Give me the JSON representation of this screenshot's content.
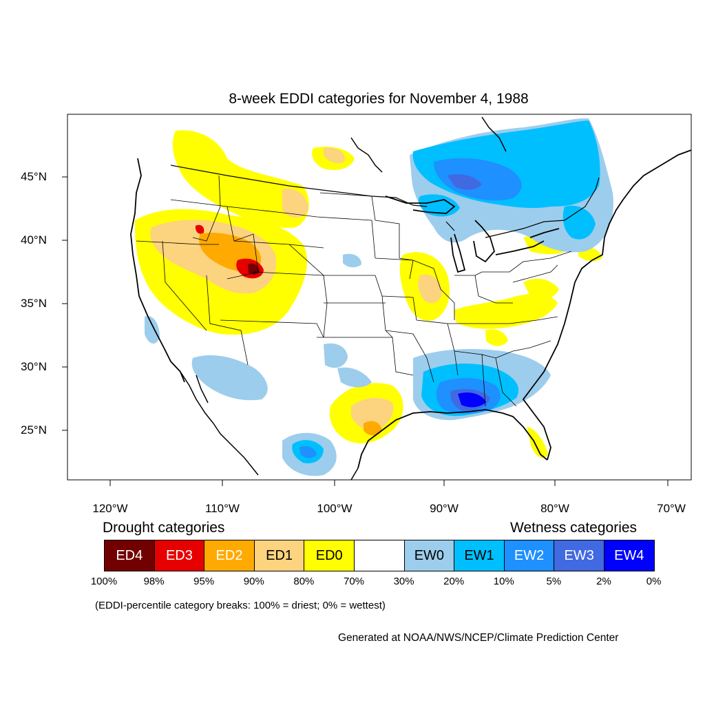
{
  "map": {
    "title": "8-week EDDI categories for November 4, 1988",
    "lat_labels": [
      "45°N",
      "40°N",
      "35°N",
      "30°N",
      "25°N"
    ],
    "lon_labels": [
      "120°W",
      "110°W",
      "100°W",
      "90°W",
      "80°W",
      "70°W"
    ]
  },
  "legend": {
    "drought_heading": "Drought categories",
    "wetness_heading": "Wetness categories",
    "categories": [
      {
        "label": "ED4",
        "color": "#730000",
        "text_color": "#ffffff"
      },
      {
        "label": "ED3",
        "color": "#e60000",
        "text_color": "#ffffff"
      },
      {
        "label": "ED2",
        "color": "#ffaa00",
        "text_color": "#ffffff"
      },
      {
        "label": "ED1",
        "color": "#fcd37f",
        "text_color": "#000000"
      },
      {
        "label": "ED0",
        "color": "#ffff00",
        "text_color": "#000000"
      },
      {
        "label": "",
        "color": "#ffffff",
        "text_color": "#000000"
      },
      {
        "label": "EW0",
        "color": "#9dcdec",
        "text_color": "#000000"
      },
      {
        "label": "EW1",
        "color": "#00bfff",
        "text_color": "#000000"
      },
      {
        "label": "EW2",
        "color": "#1e90ff",
        "text_color": "#ffffff"
      },
      {
        "label": "EW3",
        "color": "#4169e1",
        "text_color": "#ffffff"
      },
      {
        "label": "EW4",
        "color": "#0000ff",
        "text_color": "#ffffff"
      }
    ],
    "breaks": [
      "100%",
      "98%",
      "95%",
      "90%",
      "80%",
      "70%",
      "30%",
      "20%",
      "10%",
      "5%",
      "2%",
      "0%"
    ],
    "note": "(EDDI-percentile category breaks: 100% = driest; 0% = wettest)"
  },
  "credit": "Generated at NOAA/NWS/NCEP/Climate Prediction Center"
}
